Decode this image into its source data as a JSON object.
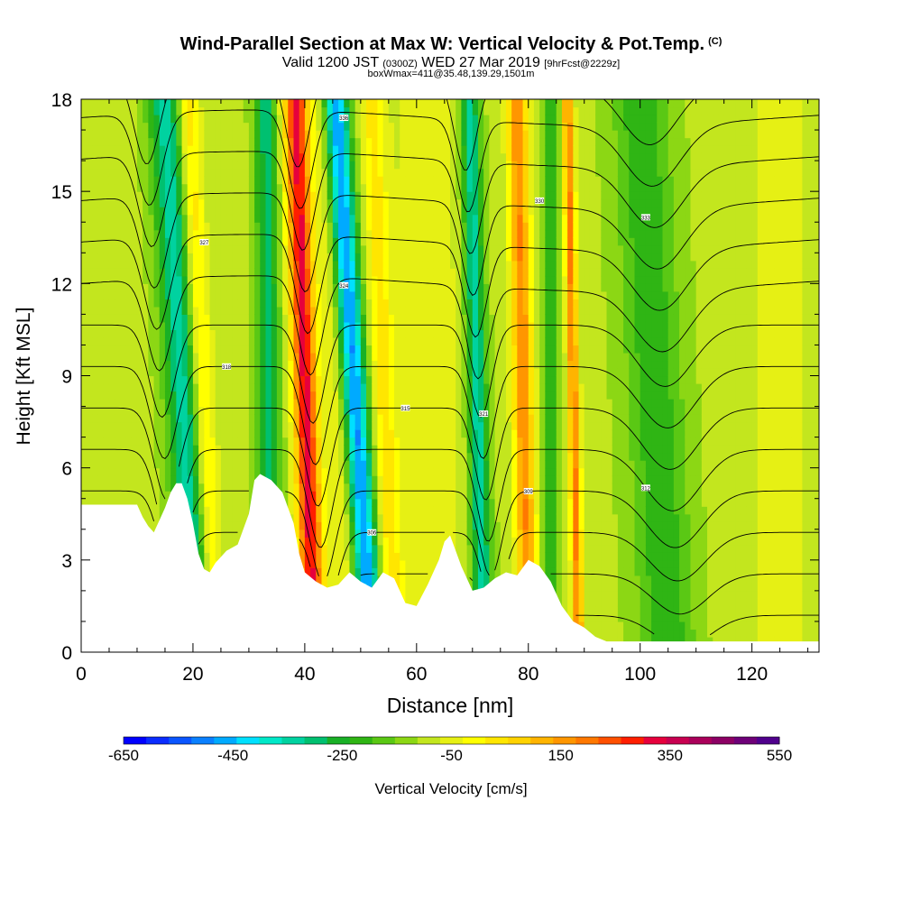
{
  "title": {
    "main": "Wind-Parallel Section at Max W: Vertical Velocity & Pot.Temp.",
    "copyright": "(C)",
    "valid_prefix": "Valid 1200 JST",
    "valid_utc": "(0300Z)",
    "valid_date": "WED 27 Mar 2019",
    "forecast": "[9hrFcst@2229z]",
    "box_info": "boxWmax=411@35.48,139.29,1501m"
  },
  "colors": {
    "terrain": "#ffffff",
    "contour": "#000000"
  },
  "chart_data": {
    "type": "heatmap",
    "xlabel": "Distance [nm]",
    "ylabel": "Height [Kft MSL]",
    "xlim": [
      0,
      132
    ],
    "ylim": [
      0,
      18
    ],
    "x_ticks": [
      0,
      20,
      40,
      60,
      80,
      100,
      120
    ],
    "y_ticks": [
      0,
      3,
      6,
      9,
      12,
      15,
      18
    ],
    "colorbar": {
      "label": "Vertical Velocity [cm/s]",
      "min": -650,
      "max": 550,
      "step": 50,
      "tick_values": [
        -650,
        -450,
        -250,
        -50,
        150,
        350,
        550
      ],
      "colors": [
        "#0000ff",
        "#0a2cff",
        "#0a55ff",
        "#0a80ff",
        "#00aaff",
        "#00e0ff",
        "#00e8c8",
        "#00d2a0",
        "#00c070",
        "#19b026",
        "#2fb514",
        "#5ac814",
        "#8cd714",
        "#c3e61e",
        "#e6f014",
        "#ffff00",
        "#ffe600",
        "#ffd200",
        "#ffb400",
        "#ff9600",
        "#ff7800",
        "#ff5000",
        "#ff1e00",
        "#e6003c",
        "#c80050",
        "#aa005a",
        "#8c0064",
        "#6e0078",
        "#50008c"
      ]
    },
    "vertical_velocity_cms": {
      "background": 10,
      "features": [
        {
          "x_base": 21,
          "x_top": 15,
          "width": 3.0,
          "value": -290
        },
        {
          "x_base": 24,
          "x_top": 19,
          "width": 2.0,
          "value": 190
        },
        {
          "x_base": 34,
          "x_top": 33,
          "width": 2.0,
          "value": -230
        },
        {
          "x_base": 41,
          "x_top": 39,
          "width": 2.0,
          "value": 190
        },
        {
          "x_base": 42,
          "x_top": 38,
          "width": 2.2,
          "value": 330
        },
        {
          "x_base": 52,
          "x_top": 45.5,
          "width": 2.2,
          "value": -470
        },
        {
          "x_base": 48,
          "x_top": 43,
          "width": 2.0,
          "value": 80
        },
        {
          "x_base": 56,
          "x_top": 52,
          "width": 2.0,
          "value": 150
        },
        {
          "x_base": 72,
          "x_top": 69.5,
          "width": 1.8,
          "value": -300
        },
        {
          "x_base": 80,
          "x_top": 78,
          "width": 1.8,
          "value": 340
        },
        {
          "x_base": 89,
          "x_top": 87,
          "width": 1.0,
          "value": 350
        },
        {
          "x_base": 84,
          "x_top": 84,
          "width": 1.5,
          "value": -130
        },
        {
          "x_base": 105,
          "x_top": 100,
          "width": 5.0,
          "value": -150
        }
      ]
    },
    "potential_temperature_contours": {
      "count": 14,
      "labels": [
        "300",
        "303",
        "306",
        "309",
        "312",
        "315",
        "318",
        "321",
        "324",
        "327",
        "330",
        "333",
        "336",
        "339"
      ]
    },
    "terrain_kft": {
      "x": [
        0,
        10,
        11,
        12,
        13,
        14,
        15,
        16,
        17,
        18,
        19,
        20,
        21,
        22,
        23,
        24,
        26,
        28,
        30,
        31,
        32,
        34,
        36,
        38,
        39,
        40,
        42,
        44,
        46,
        48,
        50,
        52,
        54,
        56,
        58,
        60,
        62,
        64,
        65,
        66,
        68,
        70,
        72,
        74,
        76,
        78,
        80,
        82,
        84,
        86,
        88,
        90,
        92,
        94,
        100,
        110,
        120,
        132
      ],
      "height": [
        4.8,
        4.8,
        4.4,
        4.1,
        3.9,
        4.3,
        4.7,
        5.2,
        5.5,
        5.5,
        5.0,
        4.2,
        3.2,
        2.7,
        2.6,
        2.9,
        3.3,
        3.5,
        4.5,
        5.6,
        5.8,
        5.6,
        5.2,
        4.2,
        3.2,
        2.6,
        2.3,
        2.1,
        2.2,
        2.6,
        2.3,
        2.1,
        2.6,
        2.4,
        1.6,
        1.5,
        2.2,
        3.0,
        3.6,
        3.8,
        2.8,
        2.0,
        2.1,
        2.4,
        2.6,
        2.5,
        3.0,
        2.8,
        2.3,
        1.5,
        1.0,
        0.8,
        0.5,
        0.35,
        0.35,
        0.35,
        0.35,
        0.35
      ]
    }
  }
}
